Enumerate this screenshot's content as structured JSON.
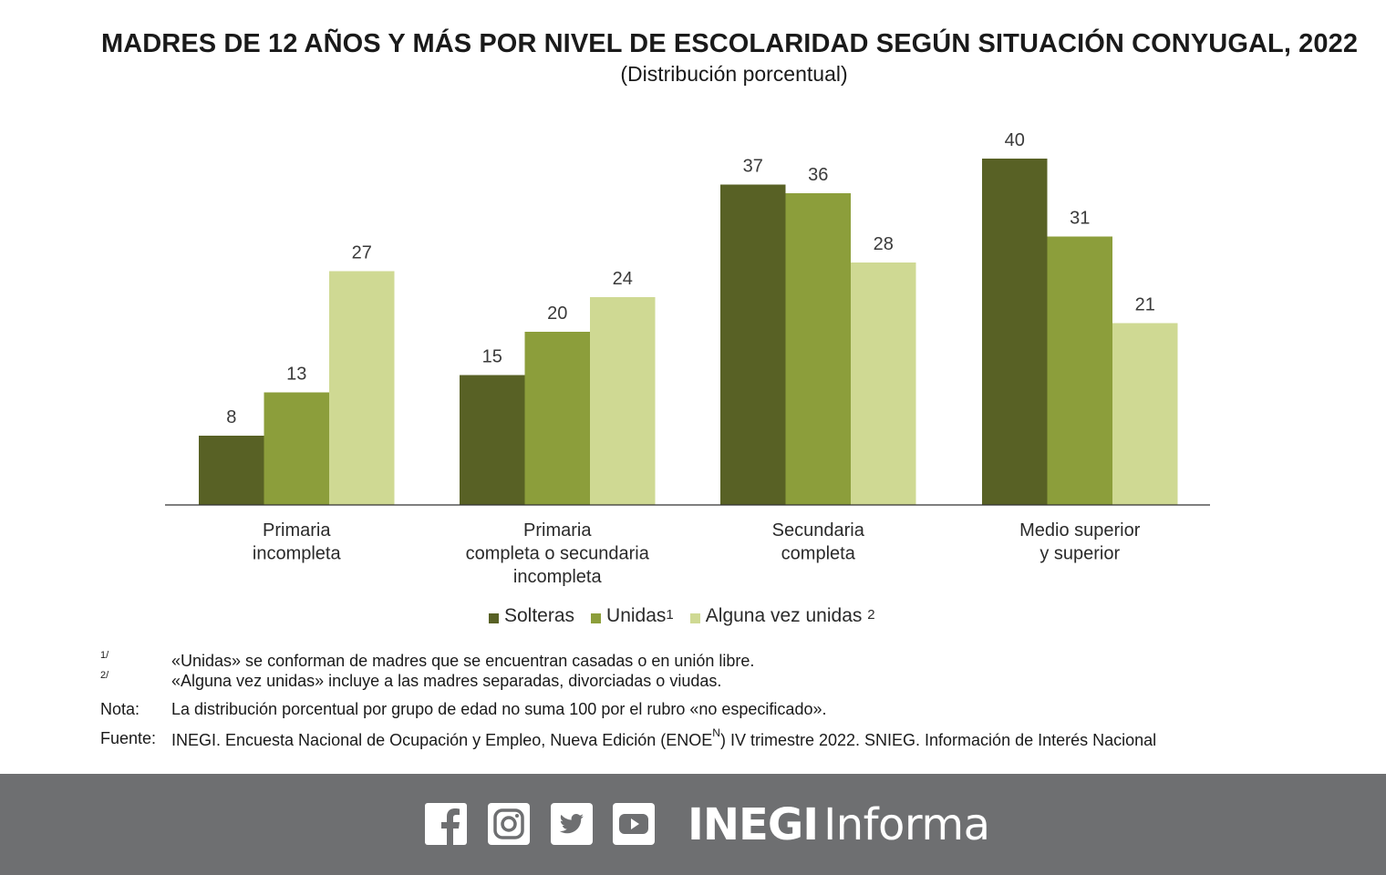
{
  "title": "MADRES DE 12 AÑOS Y MÁS POR NIVEL DE ESCOLARIDAD SEGÚN SITUACIÓN CONYUGAL, 2022",
  "subtitle": "(Distribución porcentual)",
  "chart_data": {
    "type": "bar",
    "title": "MADRES DE 12 AÑOS Y MÁS POR NIVEL DE ESCOLARIDAD SEGÚN SITUACIÓN CONYUGAL, 2022",
    "subtitle": "(Distribución porcentual)",
    "categories": [
      [
        "Primaria",
        "incompleta"
      ],
      [
        "Primaria",
        "completa o secundaria",
        "incompleta"
      ],
      [
        "Secundaria",
        "completa"
      ],
      [
        "Medio superior",
        "y superior"
      ]
    ],
    "series": [
      {
        "name": "Solteras",
        "values": [
          8,
          15,
          37,
          40
        ],
        "color": "#586125"
      },
      {
        "name": "Unidas",
        "values": [
          13,
          20,
          36,
          31
        ],
        "color": "#8c9e3b"
      },
      {
        "name": "Alguna vez unidas",
        "values": [
          27,
          24,
          28,
          21
        ],
        "color": "#cfd993"
      }
    ],
    "ylim": [
      0,
      40
    ],
    "grid": false,
    "legend_position": "bottom"
  },
  "legend": [
    {
      "label": "Solteras",
      "sup": "",
      "color": "#586125"
    },
    {
      "label": "Unidas",
      "sup": "1",
      "color": "#8c9e3b"
    },
    {
      "label": "Alguna vez unidas ",
      "sup": "2",
      "color": "#cfd993"
    }
  ],
  "notes": [
    {
      "mark": "1/",
      "text": "«Unidas» se conforman de madres que se encuentran casadas o en unión libre."
    },
    {
      "mark": "2/",
      "text": "«Alguna vez unidas» incluye a las madres separadas, divorciadas o viudas."
    },
    {
      "mark": "Nota:",
      "text": "La distribución porcentual por grupo de edad no suma 100 por el rubro «no especificado»."
    },
    {
      "mark": "Fuente:",
      "text": "INEGI. Encuesta Nacional de Ocupación y Empleo, Nueva Edición (ENOE",
      "sup": "N",
      "text_after": ") IV trimestre 2022. SNIEG. Información de Interés Nacional"
    }
  ],
  "footer": {
    "background": "#6e6f71",
    "icons": [
      "facebook-icon",
      "instagram-icon",
      "twitter-icon",
      "youtube-icon"
    ],
    "brand_bold": "INEGI",
    "brand_light": "Informa"
  }
}
